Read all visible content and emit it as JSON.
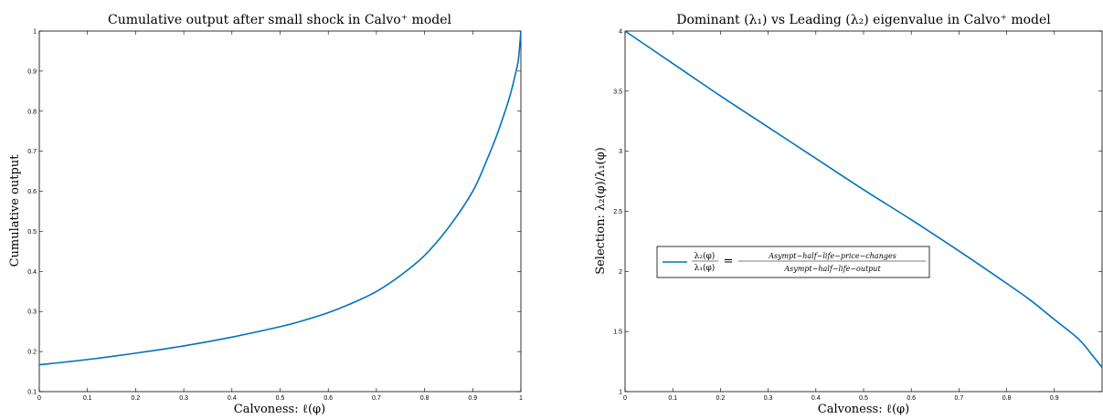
{
  "chart_data": [
    {
      "type": "line",
      "title": "Cumulative output after small shock in Calvo⁺ model",
      "xlabel": "Calvoness: ℓ(φ)",
      "ylabel": "Cumulative output",
      "xlim": [
        0,
        1
      ],
      "ylim": [
        0.1,
        1
      ],
      "xticks": [
        "0",
        "0.1",
        "0.2",
        "0.3",
        "0.4",
        "0.5",
        "0.6",
        "0.7",
        "0.8",
        "0.9",
        "1"
      ],
      "yticks": [
        "0.1",
        "0.2",
        "0.3",
        "0.4",
        "0.5",
        "0.6",
        "0.7",
        "0.8",
        "0.9",
        "1"
      ],
      "grid": false,
      "color": "#0072BD",
      "series": [
        {
          "x": [
            0,
            0.1,
            0.2,
            0.3,
            0.4,
            0.5,
            0.55,
            0.6,
            0.65,
            0.7,
            0.75,
            0.8,
            0.85,
            0.9,
            0.93,
            0.95,
            0.97,
            0.98,
            0.99,
            0.995,
            1
          ],
          "y": [
            0.167,
            0.18,
            0.196,
            0.214,
            0.236,
            0.262,
            0.278,
            0.297,
            0.321,
            0.35,
            0.39,
            0.44,
            0.51,
            0.6,
            0.68,
            0.74,
            0.81,
            0.85,
            0.9,
            0.93,
            1.0
          ]
        }
      ]
    },
    {
      "type": "line",
      "title": "Dominant (λ₁) vs Leading (λ₂) eigenvalue in Calvo⁺ model",
      "xlabel": "Calvoness: ℓ(φ)",
      "ylabel": "Selection:  λ₂(φ)/λ₁(φ)",
      "xlim": [
        0,
        1
      ],
      "ylim": [
        1,
        4
      ],
      "xticks": [
        "0",
        "0.1",
        "0.2",
        "0.3",
        "0.4",
        "0.5",
        "0.6",
        "0.7",
        "0.8",
        "0.9"
      ],
      "yticks": [
        "1",
        "1.5",
        "2",
        "2.5",
        "3",
        "3.5",
        "4"
      ],
      "grid": false,
      "color": "#0072BD",
      "legend": {
        "placement": "middle-left",
        "fraction_numerator": "λ₂(φ)",
        "fraction_denominator": "λ₁(φ)",
        "equals": "=",
        "rhs_numerator": "Asympt−half−life−price−changes",
        "rhs_denominator": "Asympt−half−life−output"
      },
      "series": [
        {
          "x": [
            0,
            0.1,
            0.2,
            0.3,
            0.4,
            0.5,
            0.6,
            0.7,
            0.8,
            0.85,
            0.9,
            0.95,
            0.98,
            1.0
          ],
          "y": [
            4.0,
            3.73,
            3.46,
            3.2,
            2.94,
            2.68,
            2.43,
            2.17,
            1.9,
            1.76,
            1.6,
            1.44,
            1.3,
            1.2
          ]
        }
      ]
    }
  ]
}
